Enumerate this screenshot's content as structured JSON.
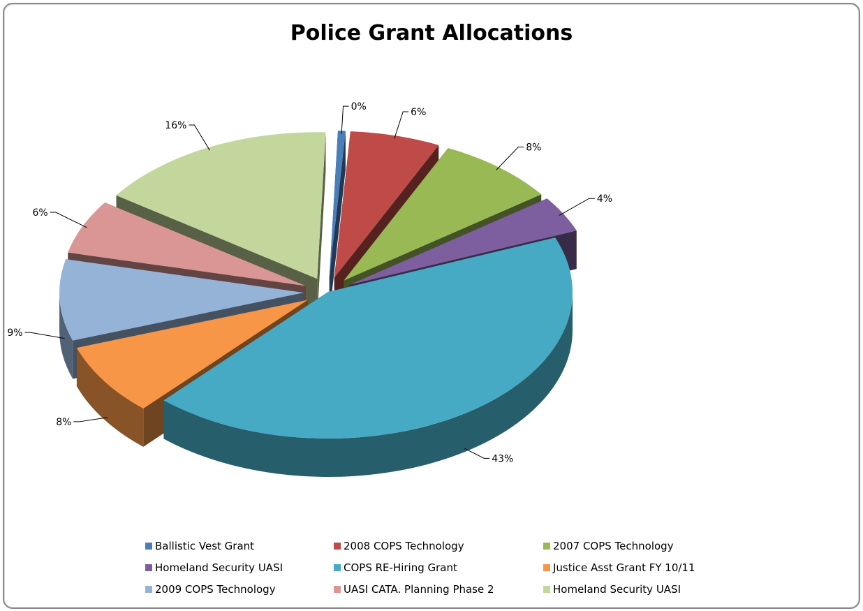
{
  "chart_data": {
    "type": "pie",
    "title": "Police Grant Allocations",
    "slices": [
      {
        "label": "Ballistic Vest Grant",
        "percent": 0,
        "display": "0%",
        "color": "#4a7ebb"
      },
      {
        "label": "2008 COPS Technology",
        "percent": 6,
        "display": "6%",
        "color": "#be4b48"
      },
      {
        "label": "2007 COPS Technology",
        "percent": 8,
        "display": "8%",
        "color": "#98b954"
      },
      {
        "label": "Homeland Security UASI",
        "percent": 4,
        "display": "4%",
        "color": "#7d5fa0"
      },
      {
        "label": "COPS RE-Hiring Grant",
        "percent": 43,
        "display": "43%",
        "color": "#46aac5"
      },
      {
        "label": "Justice Asst Grant FY 10/11",
        "percent": 8,
        "display": "8%",
        "color": "#f79646"
      },
      {
        "label": "2009 COPS Technology",
        "percent": 9,
        "display": "9%",
        "color": "#95b3d7"
      },
      {
        "label": "UASI CATA. Planning Phase 2",
        "percent": 6,
        "display": "6%",
        "color": "#d99694"
      },
      {
        "label": "Homeland Security UASI",
        "percent": 16,
        "display": "16%",
        "color": "#c3d69b"
      }
    ],
    "legend_position": "bottom",
    "exploded": true,
    "three_d": true
  }
}
